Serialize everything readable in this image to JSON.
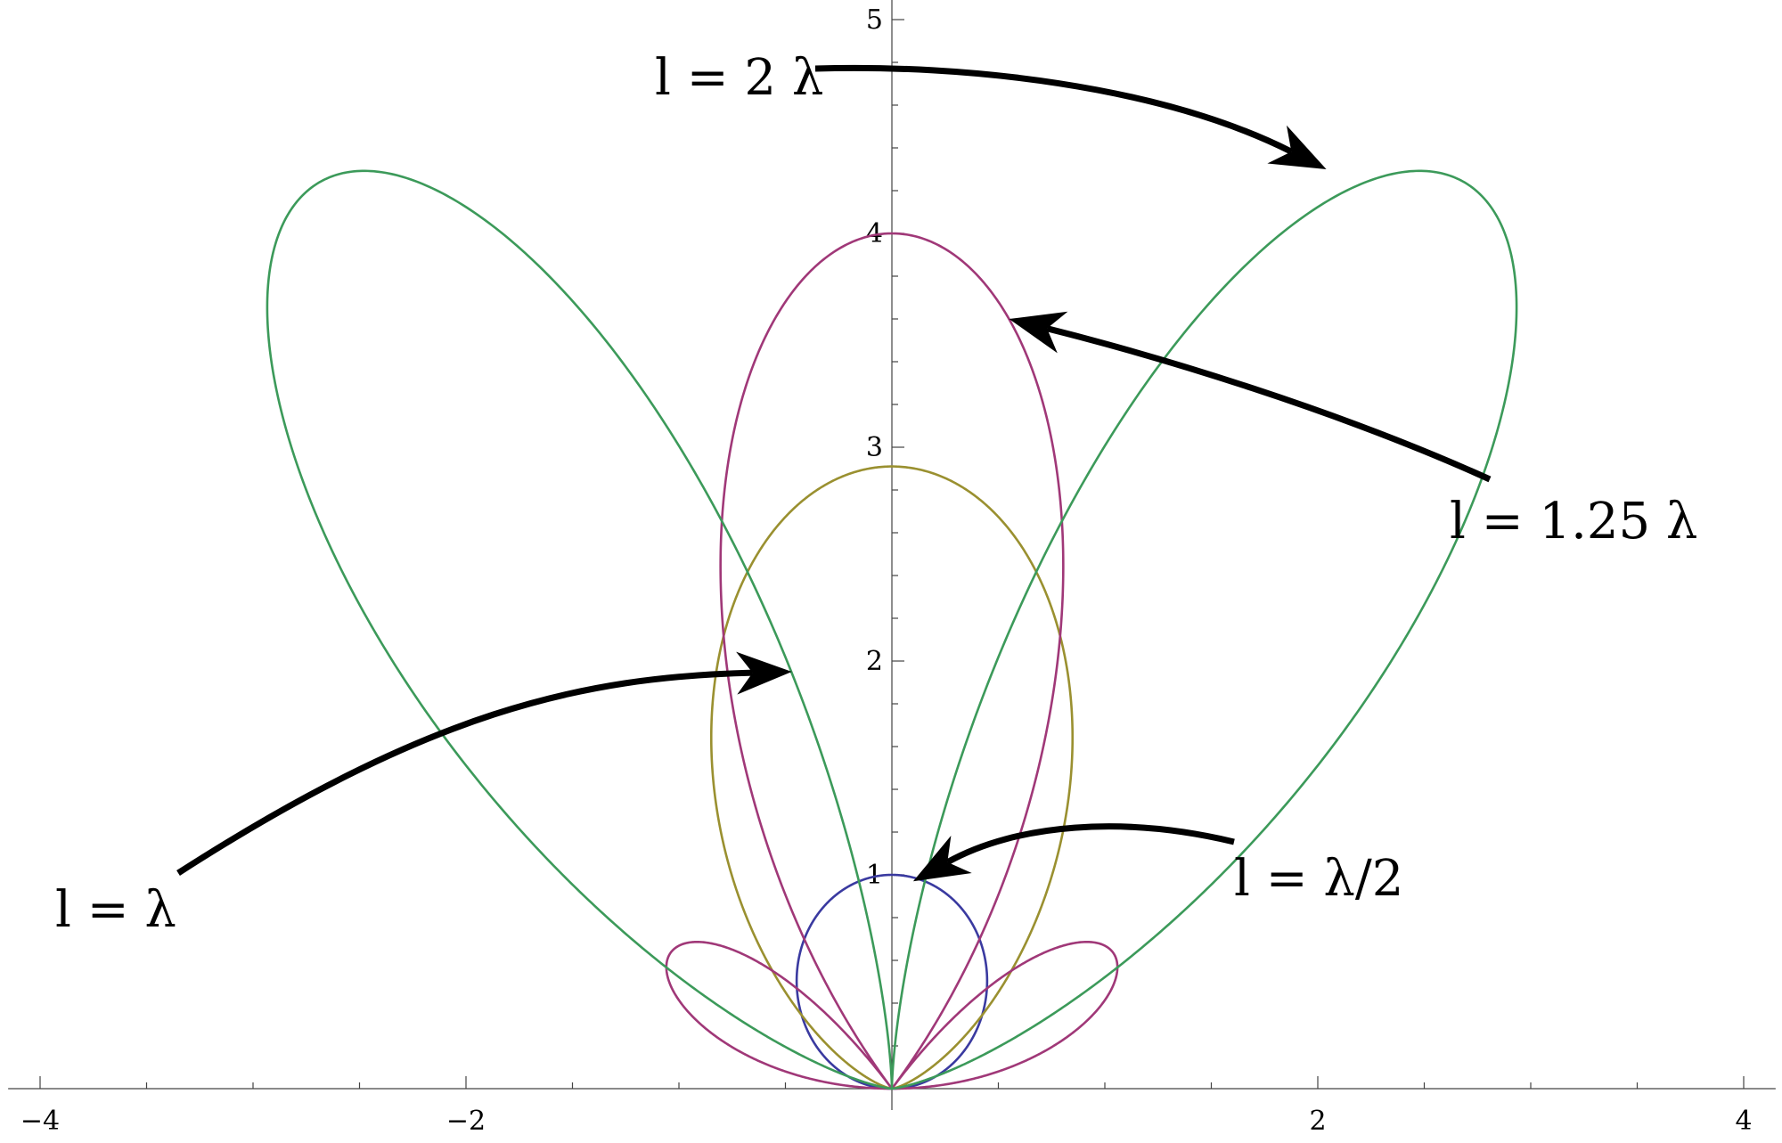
{
  "chart_data": {
    "type": "line",
    "subtype": "polar-radiation-pattern",
    "title": "",
    "xlabel": "",
    "ylabel": "",
    "xlim": [
      -4.15,
      4.15
    ],
    "ylim": [
      -0.1,
      5.15
    ],
    "grid": false,
    "x_ticks": [
      {
        "value": -4,
        "label": "−4"
      },
      {
        "value": -2,
        "label": "−2"
      },
      {
        "value": 2,
        "label": "2"
      },
      {
        "value": 4,
        "label": "4"
      }
    ],
    "y_ticks": [
      {
        "value": 1,
        "label": "1"
      },
      {
        "value": 2,
        "label": "2"
      },
      {
        "value": 3,
        "label": "3"
      },
      {
        "value": 4,
        "label": "4"
      },
      {
        "value": 5,
        "label": "5"
      }
    ],
    "series": [
      {
        "key": "half-wave",
        "kl": 3.14159265,
        "max_r": 1.0,
        "color": "#3a3aa0"
      },
      {
        "key": "full-wave",
        "kl": 6.28318531,
        "max_r": 2.91,
        "color": "#9a9030"
      },
      {
        "key": "1.25-wave",
        "kl": 7.85398163,
        "max_r": 4.0,
        "color": "#a03878"
      },
      {
        "key": "two-wave",
        "kl": 12.5663706,
        "max_r": 5.02,
        "color": "#3c9a5a"
      }
    ],
    "annotations": [
      {
        "key": "two-wave",
        "text": "l = 2 λ",
        "target": [
          2.04,
          4.3
        ]
      },
      {
        "key": "1.25-wave",
        "text": "l = 1.25 λ",
        "target": [
          0.55,
          3.6
        ]
      },
      {
        "key": "full-wave",
        "text": "l = λ",
        "target": [
          -0.47,
          1.95
        ]
      },
      {
        "key": "half-wave",
        "text": "l = λ/2",
        "target": [
          0.1,
          0.97
        ]
      }
    ]
  }
}
